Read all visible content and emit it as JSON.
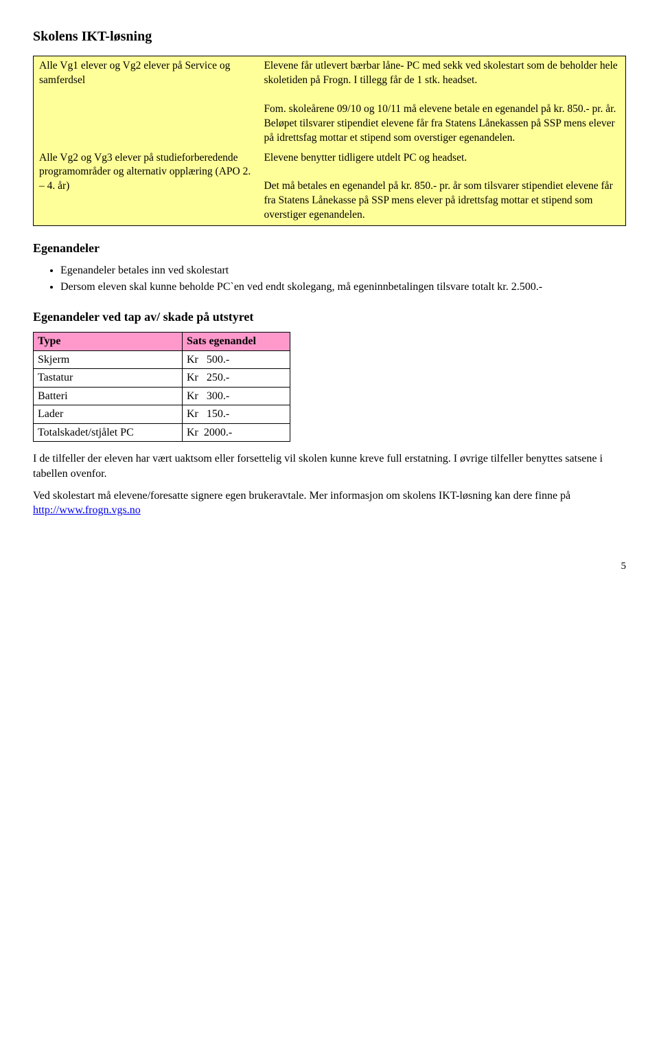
{
  "heading1": "Skolens IKT-løsning",
  "table1": {
    "background": "#ffff99",
    "border": "#000000",
    "rows": [
      {
        "left": "Alle Vg1 elever og Vg2 elever på Service og samferdsel",
        "right": "Elevene får utlevert bærbar låne- PC med sekk ved skolestart som de beholder hele skoletiden på Frogn. I tillegg får de 1 stk. headset.\n\nFom. skoleårene 09/10 og 10/11 må elevene betale en egenandel på kr. 850.- pr. år. Beløpet tilsvarer stipendiet elevene får fra Statens Lånekassen på SSP mens elever på idrettsfag mottar et stipend som overstiger egenandelen."
      },
      {
        "left": "Alle Vg2 og Vg3 elever på studieforberedende programområder og alternativ opplæring (APO 2. – 4. år)",
        "right": "Elevene benytter tidligere utdelt  PC og headset.\n\nDet må betales en egenandel på kr. 850.- pr. år som tilsvarer stipendiet elevene får fra Statens Lånekasse på SSP mens elever på idrettsfag mottar et stipend som overstiger egenandelen."
      }
    ]
  },
  "heading2": "Egenandeler",
  "bullets": [
    "Egenandeler betales inn ved skolestart",
    "Dersom eleven skal kunne beholde PC`en ved endt skolegang, må egeninnbetalingen tilsvare totalt kr. 2.500.-"
  ],
  "heading3": "Egenandeler ved tap av/ skade på utstyret",
  "table2": {
    "header_bg": "#ff99cc",
    "border": "#000000",
    "columns": [
      "Type",
      "Sats egenandel"
    ],
    "rows": [
      [
        "Skjerm",
        "Kr   500.-"
      ],
      [
        "Tastatur",
        "Kr   250.-"
      ],
      [
        "Batteri",
        "Kr   300.-"
      ],
      [
        "Lader",
        "Kr   150.-"
      ],
      [
        "Totalskadet/stjålet PC",
        "Kr  2000.-"
      ]
    ]
  },
  "para1": "I de tilfeller der eleven har vært uaktsom eller forsettelig vil skolen kunne kreve full erstatning.  I øvrige tilfeller benyttes satsene i tabellen ovenfor.",
  "para2_pre": "Ved skolestart må elevene/foresatte signere egen brukeravtale. Mer informasjon om skolens IKT-løsning kan dere finne på ",
  "para2_link": "http://www.frogn.vgs.no",
  "page_number": "5"
}
